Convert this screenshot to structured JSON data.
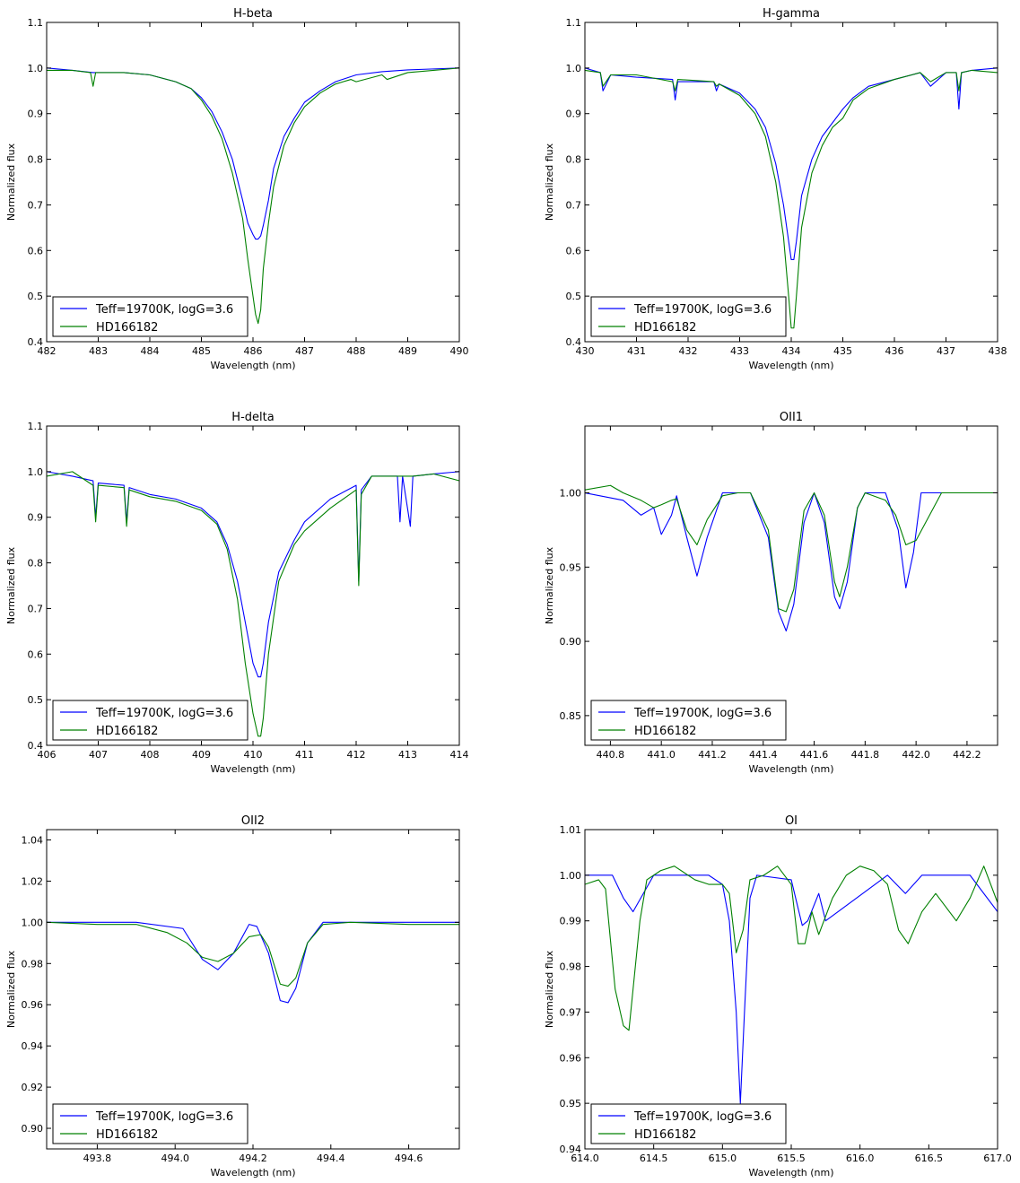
{
  "figure": {
    "legend_model": "Teff=19700K, logG=3.6",
    "legend_star": "HD166182"
  },
  "colors": {
    "model": "#0000ff",
    "star": "#008000"
  },
  "chart_data": [
    {
      "type": "line",
      "title": "H-beta",
      "xlabel": "Wavelength (nm)",
      "ylabel": "Normalized flux",
      "xlim": [
        482,
        490
      ],
      "ylim": [
        0.4,
        1.1
      ],
      "xticks": [
        "482",
        "483",
        "484",
        "485",
        "486",
        "487",
        "488",
        "489",
        "490"
      ],
      "yticks": [
        "0.4",
        "0.5",
        "0.6",
        "0.7",
        "0.8",
        "0.9",
        "1.0",
        "1.1"
      ],
      "legend": "lower left",
      "series": [
        {
          "name": "Teff=19700K, logG=3.6",
          "x": [
            482.0,
            482.5,
            482.9,
            483.5,
            484.0,
            484.5,
            484.8,
            485.0,
            485.2,
            485.4,
            485.6,
            485.8,
            485.9,
            486.0,
            486.05,
            486.1,
            486.15,
            486.2,
            486.3,
            486.4,
            486.6,
            486.8,
            487.0,
            487.3,
            487.6,
            488.0,
            488.5,
            489.0,
            489.5,
            490.0
          ],
          "y": [
            1.0,
            0.995,
            0.99,
            0.99,
            0.985,
            0.97,
            0.955,
            0.935,
            0.905,
            0.86,
            0.8,
            0.71,
            0.66,
            0.635,
            0.625,
            0.625,
            0.632,
            0.655,
            0.71,
            0.78,
            0.85,
            0.89,
            0.925,
            0.95,
            0.97,
            0.985,
            0.992,
            0.996,
            0.998,
            1.0
          ]
        },
        {
          "name": "HD166182",
          "x": [
            482.0,
            482.5,
            482.85,
            482.9,
            482.95,
            483.5,
            484.0,
            484.5,
            484.8,
            485.0,
            485.2,
            485.4,
            485.6,
            485.8,
            485.9,
            486.0,
            486.05,
            486.1,
            486.15,
            486.2,
            486.3,
            486.4,
            486.6,
            486.8,
            487.0,
            487.3,
            487.6,
            487.9,
            488.0,
            488.5,
            488.6,
            489.0,
            489.5,
            490.0
          ],
          "y": [
            0.995,
            0.995,
            0.99,
            0.96,
            0.99,
            0.99,
            0.985,
            0.97,
            0.955,
            0.93,
            0.895,
            0.845,
            0.77,
            0.67,
            0.58,
            0.5,
            0.46,
            0.44,
            0.47,
            0.56,
            0.66,
            0.74,
            0.83,
            0.88,
            0.915,
            0.945,
            0.965,
            0.975,
            0.97,
            0.985,
            0.975,
            0.99,
            0.995,
            1.0
          ]
        }
      ]
    },
    {
      "type": "line",
      "title": "H-gamma",
      "xlabel": "Wavelength (nm)",
      "ylabel": "Normalized flux",
      "xlim": [
        430,
        438
      ],
      "ylim": [
        0.4,
        1.1
      ],
      "xticks": [
        "430",
        "431",
        "432",
        "433",
        "434",
        "435",
        "436",
        "437",
        "438"
      ],
      "yticks": [
        "0.4",
        "0.5",
        "0.6",
        "0.7",
        "0.8",
        "0.9",
        "1.0",
        "1.1"
      ],
      "legend": "lower left",
      "series": [
        {
          "name": "Teff=19700K, logG=3.6",
          "x": [
            430.0,
            430.3,
            430.35,
            430.5,
            431.0,
            431.7,
            431.75,
            431.8,
            432.5,
            432.55,
            432.6,
            433.0,
            433.3,
            433.5,
            433.7,
            433.85,
            433.95,
            434.0,
            434.05,
            434.1,
            434.2,
            434.4,
            434.6,
            434.8,
            435.0,
            435.2,
            435.5,
            436.0,
            436.5,
            436.7,
            437.0,
            437.2,
            437.25,
            437.3,
            437.5,
            438.0
          ],
          "y": [
            1.0,
            0.99,
            0.95,
            0.985,
            0.98,
            0.975,
            0.93,
            0.97,
            0.97,
            0.95,
            0.965,
            0.945,
            0.91,
            0.87,
            0.79,
            0.7,
            0.62,
            0.58,
            0.58,
            0.62,
            0.72,
            0.8,
            0.85,
            0.88,
            0.91,
            0.935,
            0.96,
            0.975,
            0.99,
            0.96,
            0.99,
            0.99,
            0.91,
            0.99,
            0.995,
            1.0
          ]
        },
        {
          "name": "HD166182",
          "x": [
            430.0,
            430.3,
            430.35,
            430.5,
            431.0,
            431.7,
            431.75,
            431.8,
            432.5,
            432.55,
            432.6,
            433.0,
            433.3,
            433.5,
            433.7,
            433.85,
            433.95,
            434.0,
            434.05,
            434.1,
            434.2,
            434.4,
            434.6,
            434.8,
            435.0,
            435.2,
            435.5,
            436.0,
            436.5,
            436.7,
            437.0,
            437.2,
            437.25,
            437.3,
            437.5,
            438.0
          ],
          "y": [
            0.995,
            0.99,
            0.96,
            0.985,
            0.985,
            0.97,
            0.95,
            0.975,
            0.97,
            0.96,
            0.965,
            0.94,
            0.9,
            0.85,
            0.75,
            0.63,
            0.5,
            0.43,
            0.43,
            0.5,
            0.65,
            0.77,
            0.83,
            0.87,
            0.89,
            0.93,
            0.955,
            0.975,
            0.99,
            0.97,
            0.99,
            0.99,
            0.95,
            0.99,
            0.995,
            0.99
          ]
        }
      ]
    },
    {
      "type": "line",
      "title": "H-delta",
      "xlabel": "Wavelength (nm)",
      "ylabel": "Normalized flux",
      "xlim": [
        406,
        414
      ],
      "ylim": [
        0.4,
        1.1
      ],
      "xticks": [
        "406",
        "407",
        "408",
        "409",
        "410",
        "411",
        "412",
        "413",
        "414"
      ],
      "yticks": [
        "0.4",
        "0.5",
        "0.6",
        "0.7",
        "0.8",
        "0.9",
        "1.0",
        "1.1"
      ],
      "legend": "lower left",
      "series": [
        {
          "name": "Teff=19700K, logG=3.6",
          "x": [
            406.0,
            406.5,
            406.9,
            406.95,
            407.0,
            407.5,
            407.55,
            407.6,
            408.0,
            408.5,
            409.0,
            409.3,
            409.5,
            409.7,
            409.85,
            410.0,
            410.1,
            410.15,
            410.2,
            410.3,
            410.5,
            410.8,
            411.0,
            411.5,
            412.0,
            412.05,
            412.1,
            412.3,
            412.8,
            412.85,
            412.9,
            413.05,
            413.1,
            413.5,
            414.0
          ],
          "y": [
            1.0,
            0.99,
            0.98,
            0.9,
            0.975,
            0.97,
            0.89,
            0.965,
            0.95,
            0.94,
            0.92,
            0.89,
            0.84,
            0.76,
            0.67,
            0.58,
            0.55,
            0.55,
            0.58,
            0.67,
            0.78,
            0.85,
            0.89,
            0.94,
            0.97,
            0.76,
            0.96,
            0.99,
            0.99,
            0.89,
            0.99,
            0.88,
            0.99,
            0.995,
            1.0
          ]
        },
        {
          "name": "HD166182",
          "x": [
            406.0,
            406.5,
            406.9,
            406.95,
            407.0,
            407.5,
            407.55,
            407.6,
            408.0,
            408.5,
            409.0,
            409.3,
            409.5,
            409.7,
            409.85,
            410.0,
            410.1,
            410.15,
            410.2,
            410.3,
            410.5,
            410.8,
            411.0,
            411.5,
            412.0,
            412.05,
            412.1,
            412.3,
            412.8,
            412.85,
            412.9,
            413.05,
            413.1,
            413.5,
            414.0
          ],
          "y": [
            0.99,
            1.0,
            0.97,
            0.89,
            0.97,
            0.965,
            0.88,
            0.96,
            0.945,
            0.935,
            0.915,
            0.885,
            0.83,
            0.72,
            0.58,
            0.47,
            0.42,
            0.42,
            0.46,
            0.6,
            0.76,
            0.84,
            0.87,
            0.92,
            0.96,
            0.75,
            0.95,
            0.99,
            0.99,
            0.99,
            0.99,
            0.99,
            0.99,
            0.995,
            0.98
          ]
        }
      ]
    },
    {
      "type": "line",
      "title": "OII1",
      "xlabel": "Wavelength (nm)",
      "ylabel": "Normalized flux",
      "xlim": [
        440.7,
        442.32
      ],
      "ylim": [
        0.83,
        1.045
      ],
      "xticks": [
        "440.8",
        "441.0",
        "441.2",
        "441.4",
        "441.6",
        "441.8",
        "442.0",
        "442.2"
      ],
      "yticks": [
        "0.85",
        "0.90",
        "0.95",
        "1.00"
      ],
      "legend": "lower left",
      "series": [
        {
          "name": "Teff=19700K, logG=3.6",
          "x": [
            440.7,
            440.85,
            440.92,
            440.97,
            441.0,
            441.04,
            441.06,
            441.1,
            441.14,
            441.18,
            441.24,
            441.3,
            441.35,
            441.42,
            441.46,
            441.49,
            441.52,
            441.56,
            441.6,
            441.64,
            441.68,
            441.7,
            441.73,
            441.77,
            441.8,
            441.88,
            441.93,
            441.96,
            441.99,
            442.02,
            442.1,
            442.32
          ],
          "y": [
            1.0,
            0.995,
            0.985,
            0.99,
            0.972,
            0.985,
            0.998,
            0.97,
            0.944,
            0.97,
            1.0,
            1.0,
            1.0,
            0.97,
            0.92,
            0.907,
            0.925,
            0.98,
            1.0,
            0.98,
            0.93,
            0.922,
            0.94,
            0.99,
            1.0,
            1.0,
            0.975,
            0.936,
            0.96,
            1.0,
            1.0,
            1.0
          ]
        },
        {
          "name": "HD166182",
          "x": [
            440.7,
            440.8,
            440.85,
            440.92,
            440.97,
            441.0,
            441.04,
            441.06,
            441.1,
            441.14,
            441.18,
            441.24,
            441.3,
            441.35,
            441.42,
            441.46,
            441.49,
            441.52,
            441.56,
            441.6,
            441.64,
            441.68,
            441.7,
            441.73,
            441.77,
            441.8,
            441.88,
            441.92,
            441.96,
            442.0,
            442.1,
            442.32
          ],
          "y": [
            1.002,
            1.005,
            1.0,
            0.995,
            0.99,
            0.992,
            0.995,
            0.996,
            0.975,
            0.965,
            0.982,
            0.998,
            1.0,
            1.0,
            0.975,
            0.922,
            0.92,
            0.935,
            0.988,
            1.0,
            0.985,
            0.94,
            0.93,
            0.95,
            0.99,
            1.0,
            0.995,
            0.985,
            0.965,
            0.968,
            1.0,
            1.0
          ]
        }
      ]
    },
    {
      "type": "line",
      "title": "OII2",
      "xlabel": "Wavelength (nm)",
      "ylabel": "Normalized flux",
      "xlim": [
        493.67,
        494.73
      ],
      "ylim": [
        0.89,
        1.045
      ],
      "xticks": [
        "493.8",
        "494.0",
        "494.2",
        "494.4",
        "494.6"
      ],
      "yticks": [
        "0.90",
        "0.92",
        "0.94",
        "0.96",
        "0.98",
        "1.00",
        "1.02",
        "1.04"
      ],
      "legend": "lower left",
      "series": [
        {
          "name": "Teff=19700K, logG=3.6",
          "x": [
            493.67,
            493.9,
            494.02,
            494.07,
            494.11,
            494.15,
            494.19,
            494.21,
            494.24,
            494.27,
            494.29,
            494.31,
            494.34,
            494.38,
            494.45,
            494.73
          ],
          "y": [
            1.0,
            1.0,
            0.997,
            0.982,
            0.977,
            0.985,
            0.999,
            0.998,
            0.985,
            0.962,
            0.961,
            0.968,
            0.99,
            1.0,
            1.0,
            1.0
          ]
        },
        {
          "name": "HD166182",
          "x": [
            493.67,
            493.8,
            493.9,
            493.98,
            494.03,
            494.07,
            494.11,
            494.15,
            494.19,
            494.22,
            494.24,
            494.27,
            494.29,
            494.31,
            494.34,
            494.38,
            494.45,
            494.6,
            494.73
          ],
          "y": [
            1.0,
            0.999,
            0.999,
            0.995,
            0.99,
            0.983,
            0.981,
            0.985,
            0.993,
            0.994,
            0.988,
            0.97,
            0.969,
            0.973,
            0.99,
            0.999,
            1.0,
            0.999,
            0.999
          ]
        }
      ]
    },
    {
      "type": "line",
      "title": "OI",
      "xlabel": "Wavelength (nm)",
      "ylabel": "Normalized flux",
      "xlim": [
        614,
        617
      ],
      "ylim": [
        0.94,
        1.01
      ],
      "xticks": [
        "614.0",
        "614.5",
        "615.0",
        "615.5",
        "616.0",
        "616.5",
        "617.0"
      ],
      "yticks": [
        "0.94",
        "0.95",
        "0.96",
        "0.97",
        "0.98",
        "0.99",
        "1.00",
        "1.01"
      ],
      "legend": "lower left",
      "series": [
        {
          "name": "Teff=19700K, logG=3.6",
          "x": [
            614.0,
            614.2,
            614.28,
            614.35,
            614.5,
            614.9,
            615.0,
            615.05,
            615.1,
            615.13,
            615.16,
            615.2,
            615.25,
            615.5,
            615.58,
            615.62,
            615.7,
            615.75,
            616.2,
            616.33,
            616.45,
            616.8,
            617.0
          ],
          "y": [
            1.0,
            1.0,
            0.995,
            0.992,
            1.0,
            1.0,
            0.998,
            0.99,
            0.97,
            0.95,
            0.97,
            0.995,
            1.0,
            0.999,
            0.989,
            0.99,
            0.996,
            0.99,
            1.0,
            0.996,
            1.0,
            1.0,
            0.992
          ]
        },
        {
          "name": "HD166182",
          "x": [
            614.0,
            614.1,
            614.15,
            614.22,
            614.28,
            614.32,
            614.35,
            614.4,
            614.45,
            614.5,
            614.55,
            614.65,
            614.8,
            614.9,
            615.0,
            615.05,
            615.1,
            615.15,
            615.2,
            615.3,
            615.4,
            615.5,
            615.55,
            615.6,
            615.65,
            615.7,
            615.8,
            615.9,
            616.0,
            616.1,
            616.2,
            616.28,
            616.35,
            616.45,
            616.55,
            616.7,
            616.8,
            616.9,
            617.0
          ],
          "y": [
            0.998,
            0.999,
            0.997,
            0.975,
            0.967,
            0.966,
            0.975,
            0.99,
            0.999,
            1.0,
            1.001,
            1.002,
            0.999,
            0.998,
            0.998,
            0.996,
            0.983,
            0.988,
            0.999,
            1.0,
            1.002,
            0.998,
            0.985,
            0.985,
            0.992,
            0.987,
            0.995,
            1.0,
            1.002,
            1.001,
            0.998,
            0.988,
            0.985,
            0.992,
            0.996,
            0.99,
            0.995,
            1.002,
            0.994
          ]
        }
      ]
    }
  ]
}
